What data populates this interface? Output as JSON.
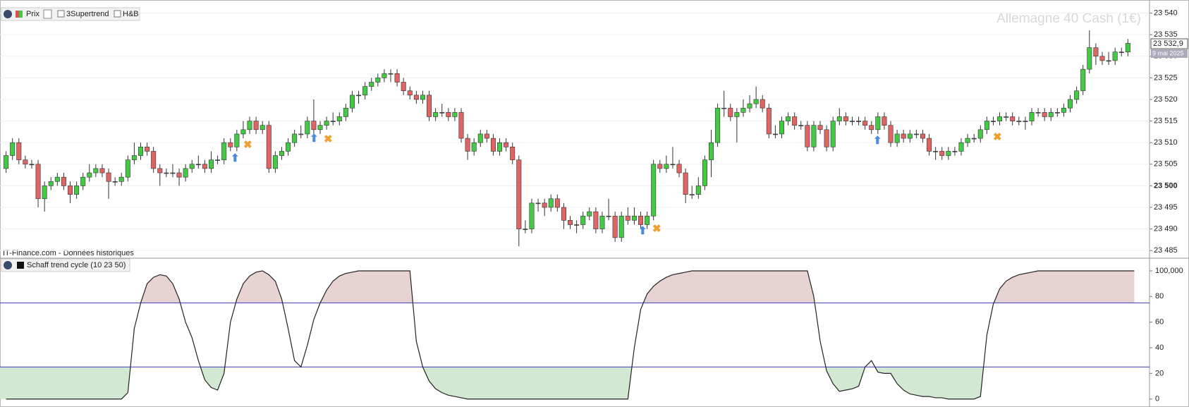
{
  "chart_data": {
    "type": "candlestick",
    "title": "Allemagne 40 Cash (1€)",
    "toolbar": [
      "Prix",
      "3Supertrend",
      "H&B"
    ],
    "source": "IT-Finance.com - Données historiques",
    "up_color": "#44c944",
    "down_color": "#e06464",
    "grid": true,
    "ylim": [
      23483.4,
      23541.4
    ],
    "yticks": [
      {
        "value": 23485,
        "label": "23 485"
      },
      {
        "value": 23490,
        "label": "23 490"
      },
      {
        "value": 23495,
        "label": "23 495"
      },
      {
        "value": 23500,
        "label": "23 500"
      },
      {
        "value": 23505,
        "label": "23 505"
      },
      {
        "value": 23510,
        "label": "23 510"
      },
      {
        "value": 23515,
        "label": "23 515"
      },
      {
        "value": 23520,
        "label": "23 520"
      },
      {
        "value": 23525,
        "label": "23 525"
      },
      {
        "value": 23530,
        "label": "23 530"
      },
      {
        "value": 23535,
        "label": "23 535"
      },
      {
        "value": 23540,
        "label": "23 540"
      }
    ],
    "bold_tick": {
      "value": 23500,
      "label": "23 500"
    },
    "last_price": {
      "value": 23532.9,
      "label": "23 532,9"
    },
    "last_date": "9 mai 2025",
    "candles": [
      [
        23504,
        23508,
        23503,
        23507
      ],
      [
        23507,
        23511,
        23506,
        23510
      ],
      [
        23510,
        23511,
        23505,
        23506
      ],
      [
        23506,
        23507,
        23504,
        23505
      ],
      [
        23505,
        23506,
        23504,
        23505
      ],
      [
        23505,
        23506,
        23495,
        23497
      ],
      [
        23497,
        23501,
        23494,
        23500
      ],
      [
        23500,
        23502,
        23499,
        23501
      ],
      [
        23501,
        23503,
        23500,
        23502
      ],
      [
        23502,
        23503,
        23499,
        23500
      ],
      [
        23500,
        23501,
        23496,
        23498
      ],
      [
        23498,
        23501,
        23497,
        23500
      ],
      [
        23500,
        23503,
        23499,
        23502
      ],
      [
        23502,
        23505,
        23501,
        23503
      ],
      [
        23503,
        23505,
        23502,
        23504
      ],
      [
        23504,
        23505,
        23502,
        23503
      ],
      [
        23503,
        23504,
        23497,
        23501
      ],
      [
        23501,
        23502,
        23500,
        23501
      ],
      [
        23501,
        23503,
        23500,
        23502
      ],
      [
        23502,
        23507,
        23501,
        23506
      ],
      [
        23506,
        23510,
        23505,
        23507
      ],
      [
        23507,
        23510,
        23506,
        23509
      ],
      [
        23509,
        23510,
        23507,
        23508
      ],
      [
        23508,
        23509,
        23503,
        23504
      ],
      [
        23504,
        23505,
        23500,
        23503
      ],
      [
        23503,
        23504,
        23502,
        23503
      ],
      [
        23503,
        23505,
        23502,
        23503
      ],
      [
        23503,
        23504,
        23500,
        23502
      ],
      [
        23502,
        23505,
        23501,
        23504
      ],
      [
        23504,
        23506,
        23503,
        23505
      ],
      [
        23505,
        23507,
        23504,
        23505
      ],
      [
        23505,
        23506,
        23503,
        23504
      ],
      [
        23504,
        23508,
        23503,
        23506
      ],
      [
        23506,
        23507,
        23505,
        23506
      ],
      [
        23506,
        23511,
        23505,
        23510
      ],
      [
        23510,
        23511,
        23508,
        23509
      ],
      [
        23509,
        23513,
        23508,
        23512
      ],
      [
        23512,
        23515,
        23511,
        23513
      ],
      [
        23513,
        23516,
        23512,
        23515
      ],
      [
        23515,
        23516,
        23512,
        23513
      ],
      [
        23513,
        23515,
        23512,
        23514
      ],
      [
        23514,
        23515,
        23503,
        23504
      ],
      [
        23504,
        23508,
        23503,
        23507
      ],
      [
        23507,
        23509,
        23506,
        23508
      ],
      [
        23508,
        23511,
        23507,
        23510
      ],
      [
        23510,
        23513,
        23509,
        23512
      ],
      [
        23512,
        23514,
        23511,
        23512
      ],
      [
        23512,
        23516,
        23511,
        23515
      ],
      [
        23515,
        23520,
        23512,
        23513
      ],
      [
        23513,
        23515,
        23512,
        23514
      ],
      [
        23514,
        23516,
        23513,
        23515
      ],
      [
        23515,
        23517,
        23514,
        23515
      ],
      [
        23515,
        23517,
        23514,
        23516
      ],
      [
        23516,
        23519,
        23515,
        23518
      ],
      [
        23518,
        23522,
        23517,
        23521
      ],
      [
        23521,
        23522,
        23519,
        23521
      ],
      [
        23521,
        23524,
        23520,
        23523
      ],
      [
        23523,
        23525,
        23522,
        23524
      ],
      [
        23524,
        23526,
        23523,
        23525
      ],
      [
        23525,
        23527,
        23524,
        23526
      ],
      [
        23526,
        23527,
        23524,
        23526
      ],
      [
        23526,
        23527,
        23523,
        23524
      ],
      [
        23524,
        23525,
        23521,
        23522
      ],
      [
        23522,
        23523,
        23520,
        23521
      ],
      [
        23521,
        23522,
        23519,
        23520
      ],
      [
        23520,
        23522,
        23519,
        23521
      ],
      [
        23521,
        23522,
        23515,
        23516
      ],
      [
        23516,
        23518,
        23515,
        23517
      ],
      [
        23517,
        23519,
        23516,
        23517
      ],
      [
        23517,
        23518,
        23515,
        23516
      ],
      [
        23516,
        23518,
        23515,
        23517
      ],
      [
        23517,
        23518,
        23510,
        23511
      ],
      [
        23511,
        23512,
        23506,
        23508
      ],
      [
        23508,
        23511,
        23507,
        23510
      ],
      [
        23510,
        23513,
        23509,
        23512
      ],
      [
        23512,
        23513,
        23510,
        23511
      ],
      [
        23511,
        23512,
        23507,
        23508
      ],
      [
        23508,
        23511,
        23507,
        23510
      ],
      [
        23510,
        23511,
        23508,
        23509
      ],
      [
        23509,
        23510,
        23505,
        23506
      ],
      [
        23506,
        23507,
        23486,
        23490
      ],
      [
        23490,
        23492,
        23489,
        23490
      ],
      [
        23490,
        23497,
        23489,
        23496
      ],
      [
        23496,
        23497,
        23494,
        23496
      ],
      [
        23496,
        23497,
        23493,
        23495
      ],
      [
        23495,
        23498,
        23494,
        23497
      ],
      [
        23497,
        23498,
        23494,
        23495
      ],
      [
        23495,
        23496,
        23490,
        23492
      ],
      [
        23492,
        23493,
        23490,
        23491
      ],
      [
        23491,
        23492,
        23489,
        23491
      ],
      [
        23491,
        23494,
        23490,
        23493
      ],
      [
        23493,
        23495,
        23492,
        23494
      ],
      [
        23494,
        23495,
        23489,
        23490
      ],
      [
        23490,
        23494,
        23489,
        23493
      ],
      [
        23493,
        23497,
        23492,
        23493
      ],
      [
        23493,
        23494,
        23487,
        23488
      ],
      [
        23488,
        23494,
        23487,
        23493
      ],
      [
        23493,
        23495,
        23491,
        23492
      ],
      [
        23492,
        23495,
        23491,
        23493
      ],
      [
        23493,
        23494,
        23490,
        23491
      ],
      [
        23491,
        23494,
        23490,
        23493
      ],
      [
        23493,
        23506,
        23492,
        23505
      ],
      [
        23505,
        23506,
        23503,
        23504
      ],
      [
        23504,
        23507,
        23503,
        23505
      ],
      [
        23505,
        23509,
        23504,
        23505
      ],
      [
        23505,
        23506,
        23502,
        23503
      ],
      [
        23503,
        23504,
        23496,
        23498
      ],
      [
        23498,
        23500,
        23497,
        23498
      ],
      [
        23498,
        23502,
        23497,
        23500
      ],
      [
        23500,
        23507,
        23499,
        23506
      ],
      [
        23506,
        23513,
        23502,
        23510
      ],
      [
        23510,
        23519,
        23509,
        23518
      ],
      [
        23518,
        23522,
        23516,
        23518
      ],
      [
        23518,
        23519,
        23515,
        23516
      ],
      [
        23516,
        23518,
        23510,
        23517
      ],
      [
        23517,
        23520,
        23516,
        23518
      ],
      [
        23518,
        23521,
        23517,
        23519
      ],
      [
        23519,
        23523,
        23518,
        23520
      ],
      [
        23520,
        23521,
        23517,
        23518
      ],
      [
        23518,
        23519,
        23511,
        23512
      ],
      [
        23512,
        23514,
        23511,
        23512
      ],
      [
        23512,
        23516,
        23511,
        23515
      ],
      [
        23515,
        23517,
        23514,
        23516
      ],
      [
        23516,
        23517,
        23513,
        23514
      ],
      [
        23514,
        23515,
        23513,
        23514
      ],
      [
        23514,
        23515,
        23508,
        23509
      ],
      [
        23509,
        23515,
        23508,
        23514
      ],
      [
        23514,
        23515,
        23512,
        23513
      ],
      [
        23513,
        23514,
        23508,
        23509
      ],
      [
        23509,
        23516,
        23508,
        23515
      ],
      [
        23515,
        23518,
        23514,
        23516
      ],
      [
        23516,
        23517,
        23514,
        23515
      ],
      [
        23515,
        23516,
        23514,
        23515
      ],
      [
        23515,
        23516,
        23514,
        23515
      ],
      [
        23515,
        23516,
        23513,
        23514
      ],
      [
        23514,
        23515,
        23512,
        23513
      ],
      [
        23513,
        23517,
        23512,
        23516
      ],
      [
        23516,
        23517,
        23513,
        23514
      ],
      [
        23514,
        23515,
        23509,
        23510
      ],
      [
        23510,
        23513,
        23509,
        23512
      ],
      [
        23512,
        23513,
        23510,
        23511
      ],
      [
        23511,
        23513,
        23510,
        23512
      ],
      [
        23512,
        23513,
        23511,
        23512
      ],
      [
        23512,
        23513,
        23510,
        23511
      ],
      [
        23511,
        23512,
        23507,
        23508
      ],
      [
        23508,
        23509,
        23506,
        23508
      ],
      [
        23508,
        23509,
        23506,
        23507
      ],
      [
        23507,
        23509,
        23506,
        23508
      ],
      [
        23508,
        23509,
        23507,
        23508
      ],
      [
        23508,
        23511,
        23507,
        23510
      ],
      [
        23510,
        23512,
        23509,
        23511
      ],
      [
        23511,
        23512,
        23510,
        23511
      ],
      [
        23511,
        23514,
        23510,
        23513
      ],
      [
        23513,
        23516,
        23512,
        23515
      ],
      [
        23515,
        23516,
        23514,
        23515
      ],
      [
        23515,
        23517,
        23514,
        23516
      ],
      [
        23516,
        23517,
        23515,
        23516
      ],
      [
        23516,
        23517,
        23514,
        23515
      ],
      [
        23515,
        23516,
        23514,
        23515
      ],
      [
        23515,
        23516,
        23513,
        23515
      ],
      [
        23515,
        23518,
        23514,
        23517
      ],
      [
        23517,
        23518,
        23516,
        23517
      ],
      [
        23517,
        23518,
        23515,
        23516
      ],
      [
        23516,
        23518,
        23515,
        23517
      ],
      [
        23517,
        23518,
        23516,
        23517
      ],
      [
        23517,
        23519,
        23516,
        23518
      ],
      [
        23518,
        23521,
        23517,
        23520
      ],
      [
        23520,
        23523,
        23519,
        23522
      ],
      [
        23522,
        23528,
        23521,
        23527
      ],
      [
        23527,
        23536,
        23526,
        23532
      ],
      [
        23532,
        23533,
        23528,
        23530
      ],
      [
        23530,
        23531,
        23528,
        23529
      ],
      [
        23529,
        23531,
        23528,
        23529
      ],
      [
        23529,
        23532,
        23528,
        23531
      ],
      [
        23531,
        23532,
        23530,
        23531
      ],
      [
        23531,
        23534,
        23530,
        23533
      ]
    ],
    "indicator": {
      "name": "Schaff trend cycle (10 23 50)",
      "color": "#222222",
      "ylim": [
        -4,
        107.7
      ],
      "yticks": [
        0,
        20,
        40,
        60,
        80,
        {
          "value": 100,
          "label": "100,000"
        }
      ],
      "upper_level": 75,
      "lower_level": 25,
      "level_color": "#3b3bb0",
      "upper_fill": "#e8d3d3",
      "lower_fill": "#d3e8d3",
      "values": [
        0,
        0,
        0,
        0,
        0,
        0,
        0,
        0,
        0,
        0,
        0,
        0,
        0,
        0,
        0,
        0,
        0,
        0,
        0,
        5,
        55,
        75,
        90,
        95,
        97,
        96,
        90,
        78,
        60,
        48,
        30,
        15,
        9,
        7,
        20,
        60,
        78,
        90,
        96,
        99,
        100,
        97,
        92,
        78,
        55,
        30,
        25,
        42,
        62,
        75,
        85,
        92,
        96,
        98,
        99,
        100,
        100,
        100,
        100,
        100,
        100,
        100,
        100,
        100,
        45,
        25,
        14,
        8,
        5,
        3,
        2,
        1,
        0,
        0,
        0,
        0,
        0,
        0,
        0,
        0,
        0,
        0,
        0,
        0,
        0,
        0,
        0,
        0,
        0,
        0,
        0,
        0,
        0,
        0,
        0,
        0,
        0,
        0,
        40,
        70,
        82,
        88,
        92,
        95,
        97,
        98,
        99,
        100,
        100,
        100,
        100,
        100,
        100,
        100,
        100,
        100,
        100,
        100,
        100,
        100,
        100,
        100,
        100,
        100,
        100,
        100,
        80,
        45,
        22,
        12,
        6,
        7,
        8,
        10,
        25,
        30,
        21,
        20,
        20,
        12,
        7,
        4,
        3,
        2,
        2,
        1,
        1,
        0,
        0,
        0,
        0,
        0,
        2,
        50,
        74,
        86,
        92,
        95,
        97,
        98,
        99,
        100,
        100,
        100,
        100,
        100,
        100,
        100,
        100,
        100,
        100,
        100,
        100,
        100,
        100,
        100,
        100
      ]
    }
  }
}
